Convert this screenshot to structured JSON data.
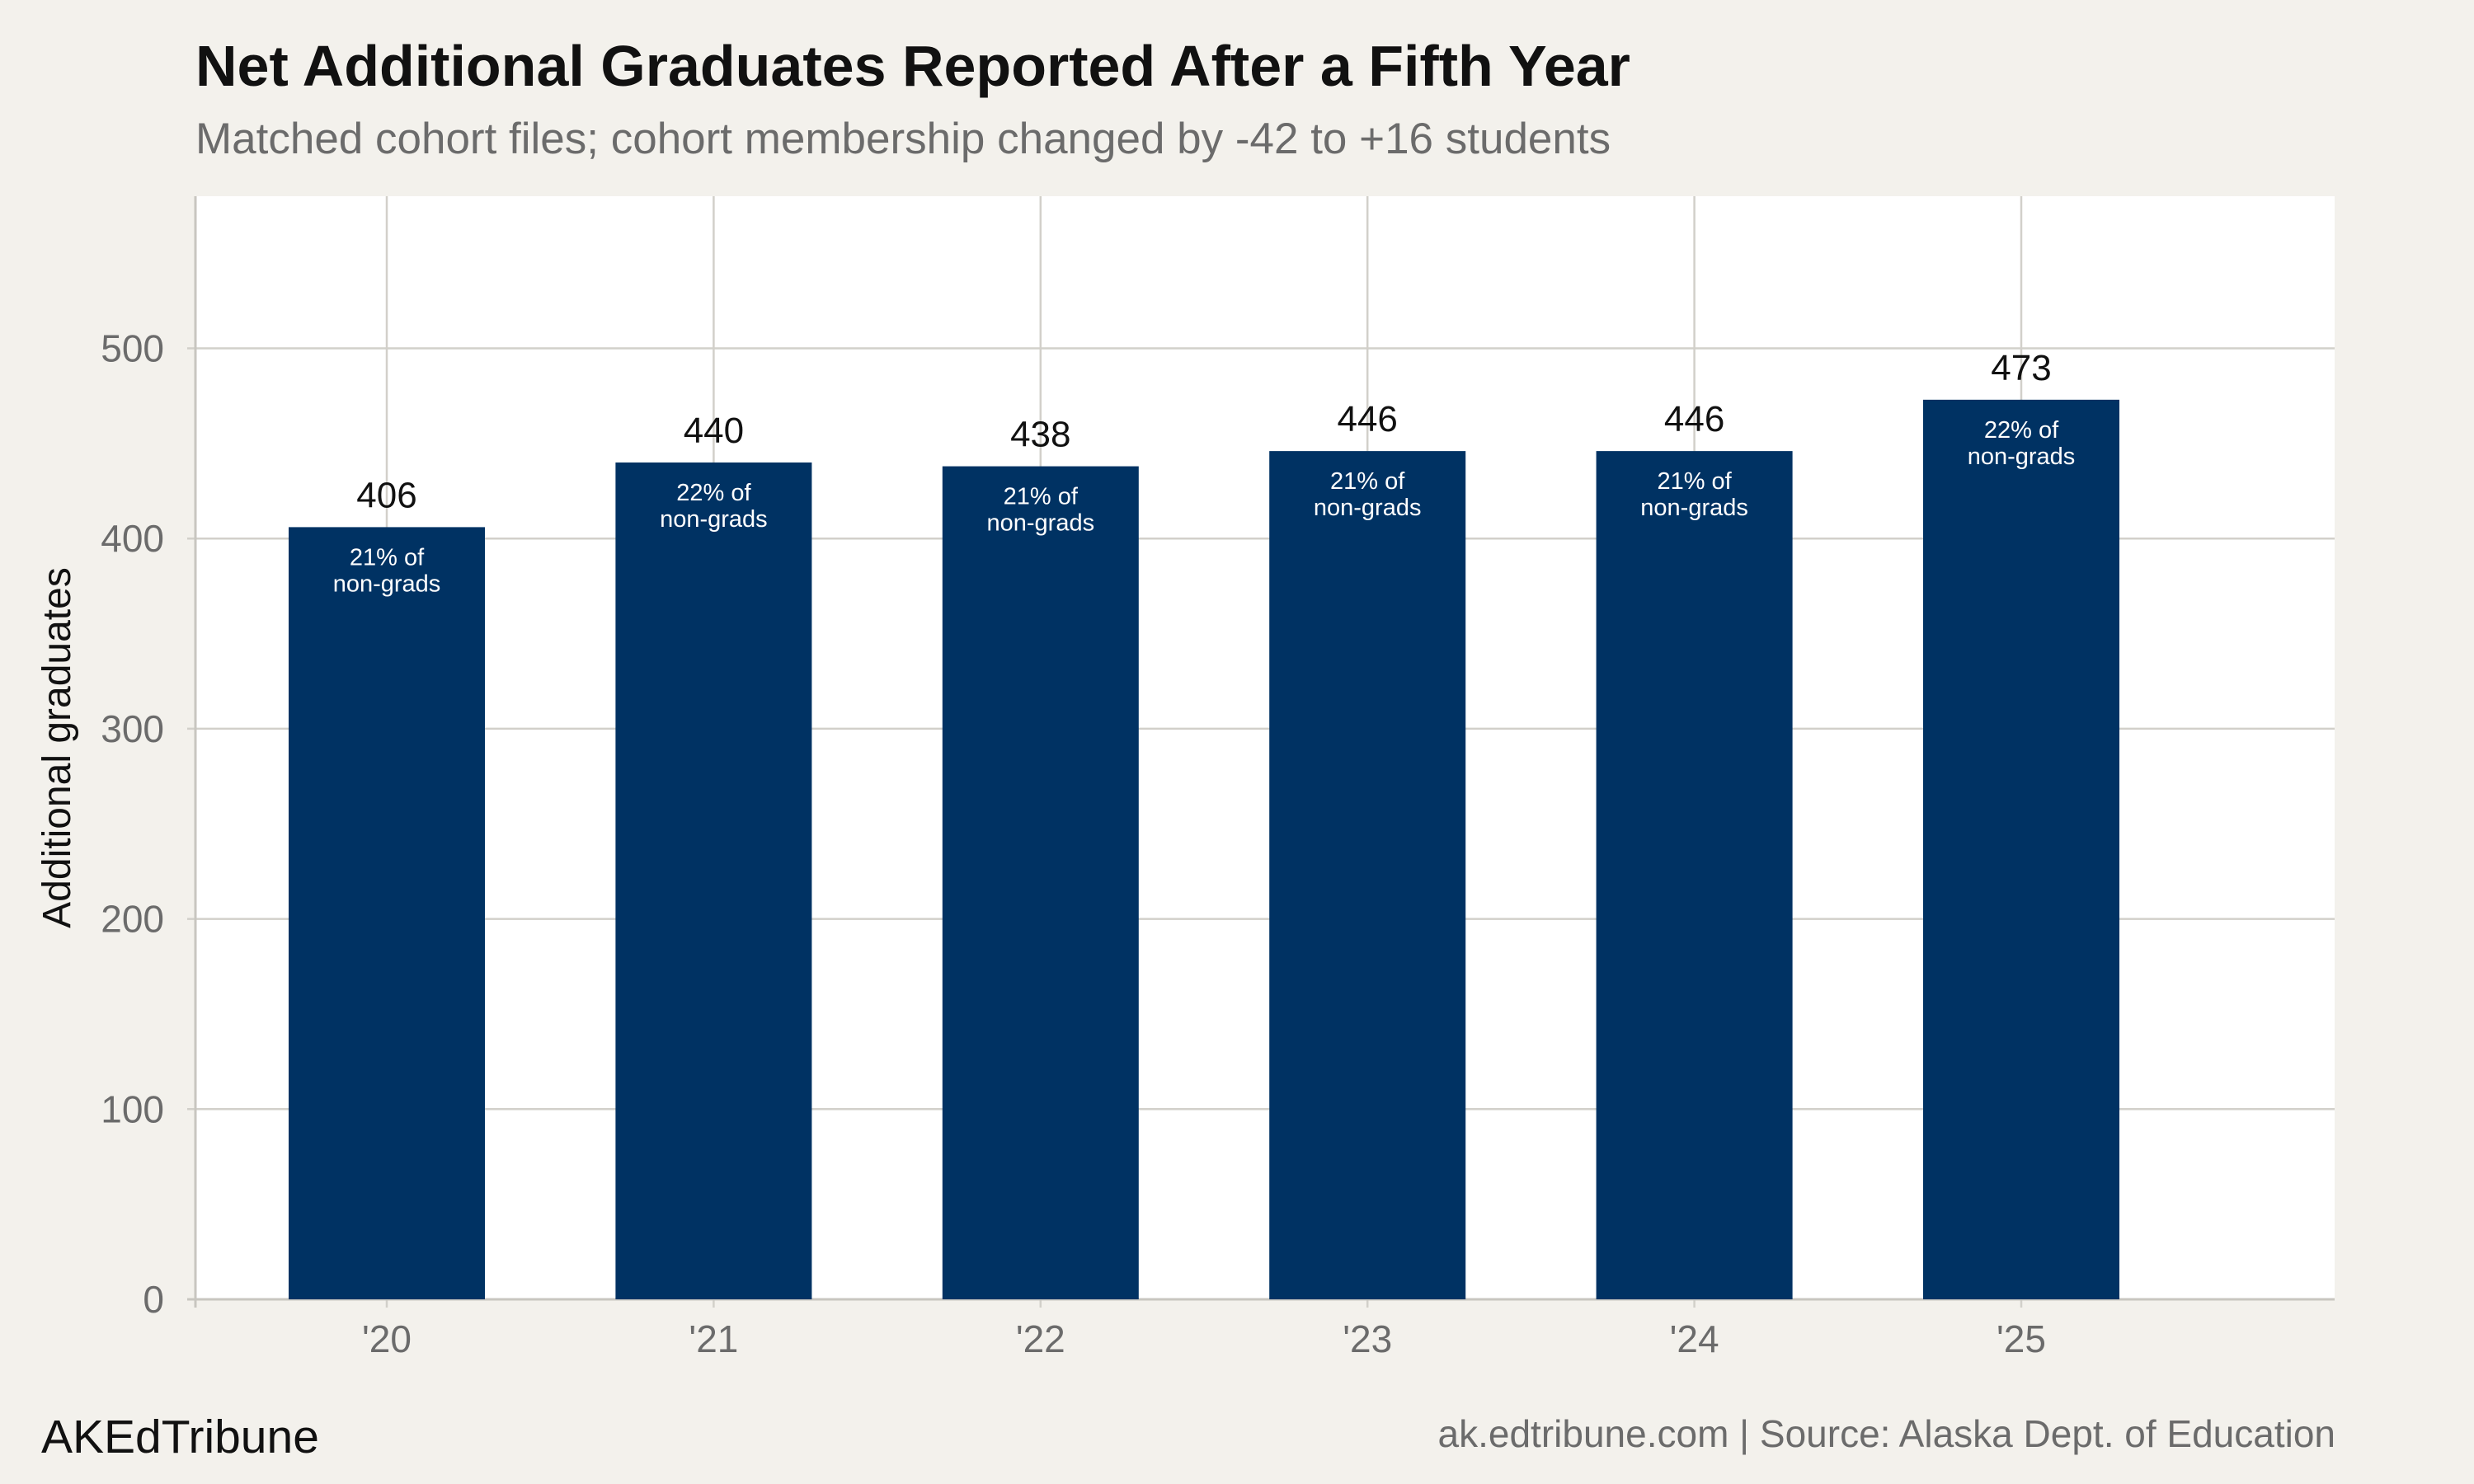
{
  "header": {
    "title": "Net Additional Graduates Reported After a Fifth Year",
    "subtitle": "Matched cohort files; cohort membership changed by -42 to +16 students"
  },
  "footer": {
    "brand": "AKEdTribune",
    "source": "ak.edtribune.com | Source: Alaska Dept. of Education"
  },
  "colors": {
    "bar": "#003263",
    "grid": "#d2d0ca",
    "plot_bg": "#ffffff",
    "page_bg": "#f3f1ec",
    "axis_text": "#6b6b6b"
  },
  "chart_data": {
    "type": "bar",
    "title": "Net Additional Graduates Reported After a Fifth Year",
    "subtitle": "Matched cohort files; cohort membership changed by -42 to +16 students",
    "xlabel": "",
    "ylabel": "Additional graduates",
    "categories": [
      "'20",
      "'21",
      "'22",
      "'23",
      "'24",
      "'25"
    ],
    "values": [
      406,
      440,
      438,
      446,
      446,
      473
    ],
    "bar_labels": [
      "21% of\nnon-grads",
      "22% of\nnon-grads",
      "21% of\nnon-grads",
      "21% of\nnon-grads",
      "21% of\nnon-grads",
      "22% of\nnon-grads"
    ],
    "ylim": [
      0,
      580
    ],
    "yticks": [
      0,
      100,
      200,
      300,
      400,
      500
    ],
    "grid": true,
    "legend": "none"
  }
}
